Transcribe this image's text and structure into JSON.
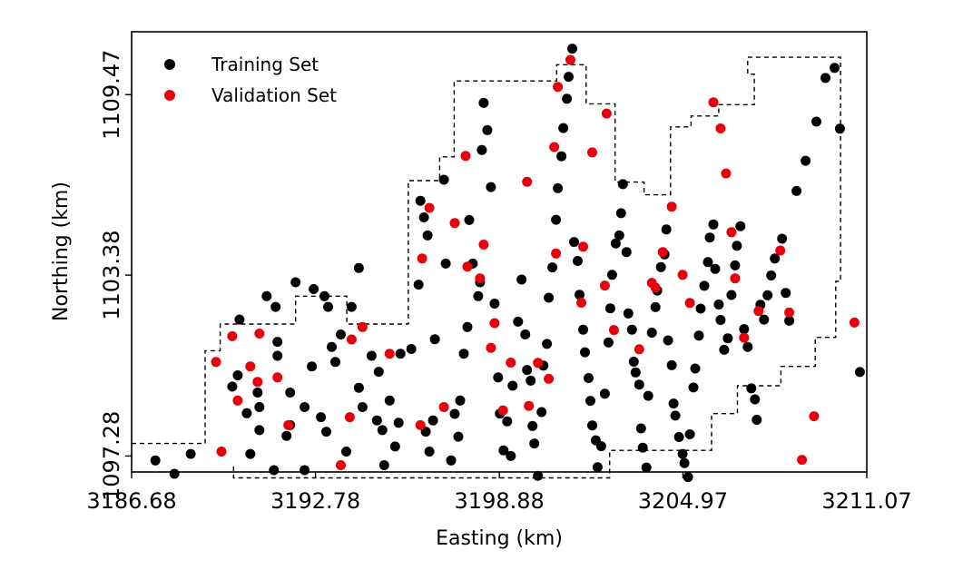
{
  "chart_data": {
    "type": "scatter",
    "title": "",
    "xlabel": "Easting (km)",
    "ylabel": "Northing (km)",
    "xlim": [
      3186.68,
      3211.07
    ],
    "ylim": [
      1096.74,
      1111.59
    ],
    "x_ticks": [
      3186.68,
      3192.78,
      3198.88,
      3204.97,
      3211.07
    ],
    "x_tick_labels": [
      "3186.68",
      "3192.78",
      "3198.88",
      "3204.97",
      "3211.07"
    ],
    "y_ticks": [
      1097.28,
      1103.38,
      1109.47
    ],
    "y_tick_labels": [
      "1097.28",
      "1103.38",
      "1109.47"
    ],
    "grid": false,
    "legend_position": "top-left",
    "series": [
      {
        "name": "Training Set",
        "color": "#000000",
        "points": [
          [
            3187.47,
            1097.13
          ],
          [
            3188.1,
            1096.68
          ],
          [
            3188.64,
            1097.35
          ],
          [
            3190.02,
            1099.62
          ],
          [
            3190.5,
            1098.72
          ],
          [
            3190.62,
            1097.35
          ],
          [
            3190.2,
            1100.0
          ],
          [
            3190.92,
            1098.93
          ],
          [
            3190.92,
            1098.15
          ],
          [
            3191.52,
            1101.13
          ],
          [
            3191.52,
            1100.66
          ],
          [
            3190.26,
            1101.88
          ],
          [
            3191.16,
            1102.67
          ],
          [
            3191.46,
            1102.31
          ],
          [
            3190.86,
            1099.42
          ],
          [
            3191.94,
            1099.42
          ],
          [
            3191.94,
            1098.32
          ],
          [
            3192.42,
            1096.8
          ],
          [
            3191.82,
            1097.96
          ],
          [
            3191.4,
            1096.8
          ],
          [
            3192.12,
            1103.14
          ],
          [
            3192.72,
            1102.91
          ],
          [
            3193.08,
            1102.67
          ],
          [
            3193.2,
            1102.31
          ],
          [
            3193.44,
            1100.45
          ],
          [
            3192.42,
            1098.93
          ],
          [
            3192.96,
            1098.59
          ],
          [
            3193.32,
            1100.96
          ],
          [
            3192.66,
            1100.3
          ],
          [
            3193.14,
            1098.1
          ],
          [
            3193.62,
            1101.38
          ],
          [
            3193.8,
            1097.43
          ],
          [
            3193.98,
            1102.31
          ],
          [
            3194.22,
            1103.62
          ],
          [
            3194.34,
            1098.93
          ],
          [
            3194.64,
            1100.66
          ],
          [
            3194.22,
            1099.58
          ],
          [
            3194.82,
            1098.48
          ],
          [
            3194.88,
            1100.12
          ],
          [
            3195.06,
            1096.97
          ],
          [
            3195.0,
            1098.15
          ],
          [
            3195.24,
            1099.15
          ],
          [
            3195.42,
            1097.6
          ],
          [
            3195.54,
            1098.4
          ],
          [
            3195.6,
            1100.73
          ],
          [
            3195.96,
            1100.89
          ],
          [
            3196.2,
            1103.06
          ],
          [
            3196.26,
            1105.89
          ],
          [
            3196.38,
            1105.33
          ],
          [
            3196.5,
            1104.72
          ],
          [
            3196.44,
            1098.1
          ],
          [
            3196.56,
            1097.43
          ],
          [
            3196.68,
            1098.48
          ],
          [
            3196.74,
            1101.22
          ],
          [
            3197.04,
            1106.6
          ],
          [
            3197.1,
            1103.77
          ],
          [
            3197.28,
            1097.13
          ],
          [
            3197.52,
            1097.93
          ],
          [
            3197.4,
            1098.7
          ],
          [
            3197.58,
            1099.15
          ],
          [
            3197.7,
            1100.73
          ],
          [
            3197.82,
            1101.63
          ],
          [
            3198.18,
            1102.67
          ],
          [
            3198.24,
            1103.14
          ],
          [
            3198.0,
            1103.77
          ],
          [
            3197.88,
            1105.24
          ],
          [
            3198.3,
            1107.6
          ],
          [
            3198.48,
            1108.27
          ],
          [
            3198.36,
            1109.19
          ],
          [
            3198.6,
            1106.35
          ],
          [
            3198.72,
            1102.42
          ],
          [
            3198.84,
            1099.93
          ],
          [
            3198.9,
            1098.71
          ],
          [
            3199.02,
            1097.47
          ],
          [
            3199.14,
            1098.45
          ],
          [
            3199.26,
            1097.28
          ],
          [
            3199.32,
            1099.65
          ],
          [
            3199.5,
            1101.81
          ],
          [
            3199.62,
            1103.23
          ],
          [
            3199.74,
            1101.38
          ],
          [
            3199.8,
            1100.18
          ],
          [
            3199.92,
            1099.82
          ],
          [
            3199.98,
            1098.29
          ],
          [
            3200.04,
            1097.7
          ],
          [
            3200.16,
            1096.61
          ],
          [
            3200.28,
            1098.76
          ],
          [
            3200.34,
            1100.33
          ],
          [
            3200.46,
            1101.06
          ],
          [
            3200.52,
            1102.62
          ],
          [
            3200.64,
            1103.64
          ],
          [
            3200.76,
            1105.25
          ],
          [
            3200.82,
            1106.31
          ],
          [
            3200.94,
            1107.39
          ],
          [
            3201.0,
            1108.34
          ],
          [
            3201.12,
            1109.33
          ],
          [
            3201.18,
            1110.07
          ],
          [
            3201.3,
            1111.02
          ],
          [
            3201.36,
            1104.5
          ],
          [
            3201.48,
            1103.86
          ],
          [
            3201.54,
            1102.72
          ],
          [
            3201.66,
            1101.54
          ],
          [
            3201.72,
            1100.78
          ],
          [
            3201.84,
            1099.91
          ],
          [
            3201.9,
            1099.14
          ],
          [
            3201.96,
            1098.31
          ],
          [
            3202.08,
            1097.81
          ],
          [
            3202.14,
            1096.9
          ],
          [
            3202.26,
            1097.61
          ],
          [
            3202.38,
            1099.38
          ],
          [
            3202.5,
            1101.11
          ],
          [
            3202.56,
            1102.26
          ],
          [
            3202.62,
            1103.39
          ],
          [
            3202.74,
            1104.45
          ],
          [
            3202.86,
            1104.72
          ],
          [
            3202.92,
            1105.47
          ],
          [
            3202.98,
            1106.45
          ],
          [
            3203.1,
            1104.16
          ],
          [
            3203.16,
            1102.09
          ],
          [
            3203.28,
            1101.54
          ],
          [
            3203.34,
            1100.46
          ],
          [
            3203.4,
            1100.1
          ],
          [
            3203.52,
            1099.69
          ],
          [
            3203.58,
            1098.21
          ],
          [
            3203.64,
            1097.56
          ],
          [
            3203.76,
            1096.89
          ],
          [
            3203.82,
            1099.31
          ],
          [
            3203.94,
            1101.44
          ],
          [
            3204.06,
            1102.3
          ],
          [
            3204.12,
            1102.86
          ],
          [
            3204.24,
            1103.65
          ],
          [
            3204.36,
            1104.08
          ],
          [
            3204.42,
            1104.92
          ],
          [
            3204.48,
            1101.18
          ],
          [
            3204.6,
            1100.34
          ],
          [
            3204.66,
            1099.05
          ],
          [
            3204.72,
            1098.64
          ],
          [
            3204.84,
            1097.92
          ],
          [
            3204.96,
            1097.35
          ],
          [
            3205.02,
            1097.04
          ],
          [
            3205.14,
            1096.57
          ],
          [
            3205.2,
            1098.01
          ],
          [
            3205.32,
            1099.59
          ],
          [
            3205.38,
            1100.23
          ],
          [
            3205.5,
            1101.34
          ],
          [
            3205.56,
            1102.25
          ],
          [
            3205.68,
            1103.02
          ],
          [
            3205.8,
            1103.82
          ],
          [
            3205.86,
            1104.65
          ],
          [
            3205.98,
            1105.09
          ],
          [
            3206.04,
            1103.59
          ],
          [
            3206.16,
            1102.39
          ],
          [
            3206.22,
            1101.87
          ],
          [
            3206.34,
            1100.86
          ],
          [
            3206.46,
            1101.25
          ],
          [
            3206.58,
            1102.71
          ],
          [
            3206.7,
            1103.71
          ],
          [
            3206.76,
            1104.37
          ],
          [
            3206.88,
            1105.03
          ],
          [
            3207.0,
            1101.56
          ],
          [
            3207.12,
            1100.96
          ],
          [
            3207.24,
            1099.56
          ],
          [
            3207.36,
            1099.19
          ],
          [
            3207.42,
            1098.5
          ],
          [
            3207.54,
            1102.38
          ],
          [
            3207.66,
            1101.88
          ],
          [
            3207.78,
            1102.7
          ],
          [
            3207.9,
            1103.37
          ],
          [
            3208.02,
            1103.94
          ],
          [
            3208.26,
            1104.61
          ],
          [
            3208.38,
            1102.78
          ],
          [
            3208.5,
            1101.84
          ],
          [
            3208.74,
            1106.22
          ],
          [
            3209.04,
            1107.24
          ],
          [
            3209.4,
            1108.56
          ],
          [
            3209.7,
            1110.03
          ],
          [
            3210.0,
            1110.37
          ],
          [
            3210.18,
            1108.32
          ],
          [
            3210.84,
            1100.11
          ]
        ]
      },
      {
        "name": "Validation Set",
        "color": "#e8000b",
        "points": [
          [
            3189.66,
            1097.43
          ],
          [
            3189.48,
            1100.45
          ],
          [
            3190.02,
            1101.32
          ],
          [
            3190.2,
            1099.15
          ],
          [
            3190.62,
            1100.3
          ],
          [
            3190.86,
            1099.78
          ],
          [
            3190.92,
            1101.41
          ],
          [
            3191.52,
            1099.93
          ],
          [
            3191.88,
            1098.32
          ],
          [
            3193.62,
            1096.97
          ],
          [
            3193.92,
            1098.59
          ],
          [
            3193.98,
            1101.21
          ],
          [
            3194.34,
            1101.63
          ],
          [
            3195.24,
            1100.73
          ],
          [
            3196.26,
            1098.32
          ],
          [
            3196.32,
            1103.94
          ],
          [
            3196.56,
            1105.65
          ],
          [
            3197.04,
            1098.93
          ],
          [
            3197.4,
            1105.14
          ],
          [
            3197.76,
            1107.4
          ],
          [
            3197.82,
            1103.67
          ],
          [
            3198.24,
            1103.27
          ],
          [
            3198.36,
            1104.41
          ],
          [
            3198.6,
            1100.93
          ],
          [
            3198.72,
            1101.76
          ],
          [
            3199.0,
            1098.82
          ],
          [
            3199.26,
            1100.43
          ],
          [
            3199.8,
            1106.53
          ],
          [
            3199.86,
            1098.97
          ],
          [
            3200.16,
            1100.42
          ],
          [
            3200.52,
            1099.88
          ],
          [
            3200.76,
            1104.11
          ],
          [
            3200.82,
            1109.73
          ],
          [
            3201.24,
            1110.64
          ],
          [
            3201.6,
            1102.45
          ],
          [
            3201.66,
            1104.34
          ],
          [
            3201.96,
            1107.52
          ],
          [
            3202.38,
            1103.03
          ],
          [
            3202.68,
            1101.53
          ],
          [
            3203.52,
            1100.88
          ],
          [
            3203.94,
            1103.12
          ],
          [
            3204.06,
            1102.96
          ],
          [
            3204.3,
            1104.16
          ],
          [
            3204.6,
            1105.69
          ],
          [
            3204.96,
            1103.39
          ],
          [
            3205.2,
            1102.44
          ],
          [
            3205.98,
            1109.21
          ],
          [
            3206.22,
            1108.33
          ],
          [
            3206.4,
            1106.81
          ],
          [
            3206.58,
            1104.83
          ],
          [
            3206.7,
            1103.27
          ],
          [
            3207.0,
            1101.27
          ],
          [
            3207.48,
            1102.17
          ],
          [
            3208.2,
            1104.21
          ],
          [
            3208.5,
            1102.12
          ],
          [
            3208.92,
            1097.15
          ],
          [
            3209.32,
            1098.62
          ],
          [
            3210.66,
            1101.78
          ],
          [
            3202.44,
            1108.83
          ],
          [
            3200.7,
            1107.7
          ]
        ]
      }
    ],
    "annotations": [
      {
        "type": "polygon",
        "style": "dashed",
        "description": "region boundary",
        "vertices": [
          [
            3186.68,
            1097.7
          ],
          [
            3189.12,
            1097.7
          ],
          [
            3189.12,
            1100.83
          ],
          [
            3189.62,
            1100.83
          ],
          [
            3189.62,
            1101.73
          ],
          [
            3192.12,
            1101.73
          ],
          [
            3192.12,
            1102.67
          ],
          [
            3193.82,
            1102.67
          ],
          [
            3193.82,
            1101.73
          ],
          [
            3195.86,
            1101.73
          ],
          [
            3195.86,
            1106.57
          ],
          [
            3196.9,
            1106.57
          ],
          [
            3196.9,
            1107.37
          ],
          [
            3197.38,
            1107.37
          ],
          [
            3197.38,
            1109.93
          ],
          [
            3200.78,
            1109.93
          ],
          [
            3200.78,
            1110.48
          ],
          [
            3201.76,
            1110.48
          ],
          [
            3201.76,
            1109.16
          ],
          [
            3202.72,
            1109.16
          ],
          [
            3202.72,
            1106.52
          ],
          [
            3203.68,
            1106.52
          ],
          [
            3203.68,
            1106.09
          ],
          [
            3204.56,
            1106.09
          ],
          [
            3204.56,
            1108.38
          ],
          [
            3205.24,
            1108.38
          ],
          [
            3205.24,
            1108.75
          ],
          [
            3206.16,
            1108.75
          ],
          [
            3206.16,
            1109.13
          ],
          [
            3207.34,
            1109.13
          ],
          [
            3207.34,
            1110.16
          ],
          [
            3207.12,
            1110.16
          ],
          [
            3207.12,
            1110.73
          ],
          [
            3210.2,
            1110.73
          ],
          [
            3210.2,
            1103.17
          ],
          [
            3210.04,
            1103.17
          ],
          [
            3210.04,
            1101.28
          ],
          [
            3209.36,
            1101.28
          ],
          [
            3209.36,
            1100.3
          ],
          [
            3208.22,
            1100.3
          ],
          [
            3208.22,
            1099.65
          ],
          [
            3206.78,
            1099.65
          ],
          [
            3206.78,
            1098.71
          ],
          [
            3205.92,
            1098.71
          ],
          [
            3205.92,
            1097.47
          ],
          [
            3202.54,
            1097.47
          ],
          [
            3202.54,
            1096.54
          ],
          [
            3190.06,
            1096.54
          ],
          [
            3190.06,
            1096.94
          ]
        ]
      }
    ]
  }
}
